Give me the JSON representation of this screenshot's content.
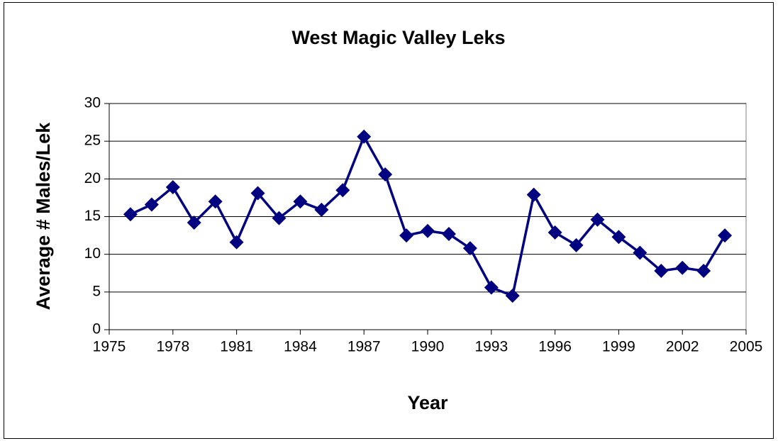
{
  "chart_data": {
    "type": "line",
    "title": "West Magic Valley Leks",
    "xlabel": "Year",
    "ylabel": "Average # Males/Lek",
    "x": [
      1976,
      1977,
      1978,
      1979,
      1980,
      1981,
      1982,
      1983,
      1984,
      1985,
      1986,
      1987,
      1988,
      1989,
      1990,
      1991,
      1992,
      1993,
      1994,
      1995,
      1996,
      1997,
      1998,
      1999,
      2000,
      2001,
      2002,
      2003,
      2004
    ],
    "series": [
      {
        "color": "#000080",
        "values": [
          15.3,
          16.6,
          18.9,
          14.2,
          17.0,
          11.6,
          18.1,
          14.8,
          17.0,
          15.9,
          18.5,
          25.6,
          20.6,
          12.5,
          13.1,
          12.7,
          10.8,
          5.6,
          4.5,
          17.9,
          12.9,
          11.2,
          14.6,
          12.3,
          10.2,
          7.8,
          8.2,
          7.8,
          12.5
        ]
      }
    ],
    "xlim": [
      1975,
      2005
    ],
    "xticks": [
      1975,
      1978,
      1981,
      1984,
      1987,
      1990,
      1993,
      1996,
      1999,
      2002,
      2005
    ],
    "ylim": [
      0,
      30
    ],
    "yticks": [
      0,
      5,
      10,
      15,
      20,
      25,
      30
    ],
    "grid": true
  }
}
